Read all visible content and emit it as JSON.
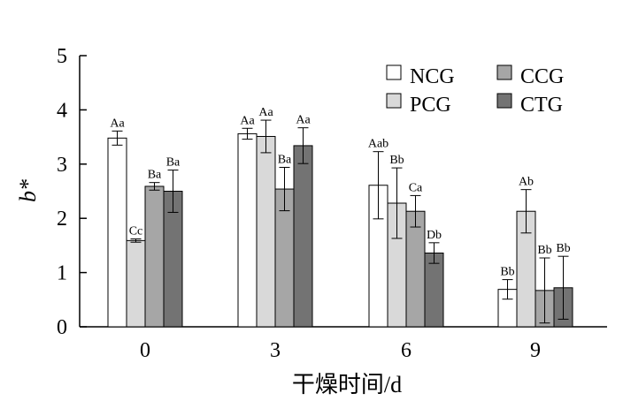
{
  "chart_data": {
    "type": "bar",
    "xlabel": "干燥时间/d",
    "ylabel": "b*",
    "ylim": [
      0,
      5
    ],
    "yticks": [
      "0",
      "1",
      "2",
      "3",
      "4",
      "5"
    ],
    "categories": [
      "0",
      "3",
      "6",
      "9"
    ],
    "legend_position": "top-right",
    "series": [
      {
        "name": "NCG",
        "color": "#ffffff",
        "values": [
          3.48,
          3.56,
          2.61,
          0.69
        ],
        "errors": [
          0.13,
          0.1,
          0.62,
          0.18
        ],
        "labels": [
          "Aa",
          "Aa",
          "Aab",
          "Bb"
        ]
      },
      {
        "name": "PCG",
        "color": "#d9d9d9",
        "values": [
          1.59,
          3.51,
          2.28,
          2.13
        ],
        "errors": [
          0.03,
          0.3,
          0.65,
          0.4
        ],
        "labels": [
          "Cc",
          "Aa",
          "Bb",
          "Ab"
        ]
      },
      {
        "name": "CCG",
        "color": "#a6a6a6",
        "values": [
          2.59,
          2.54,
          2.13,
          0.67
        ],
        "errors": [
          0.07,
          0.4,
          0.29,
          0.6
        ],
        "labels": [
          "Ba",
          "Ba",
          "Ca",
          "Bb"
        ]
      },
      {
        "name": "CTG",
        "color": "#737373",
        "values": [
          2.5,
          3.34,
          1.36,
          0.72
        ],
        "errors": [
          0.39,
          0.33,
          0.19,
          0.58
        ],
        "labels": [
          "Ba",
          "Aa",
          "Db",
          "Bb"
        ]
      }
    ]
  }
}
